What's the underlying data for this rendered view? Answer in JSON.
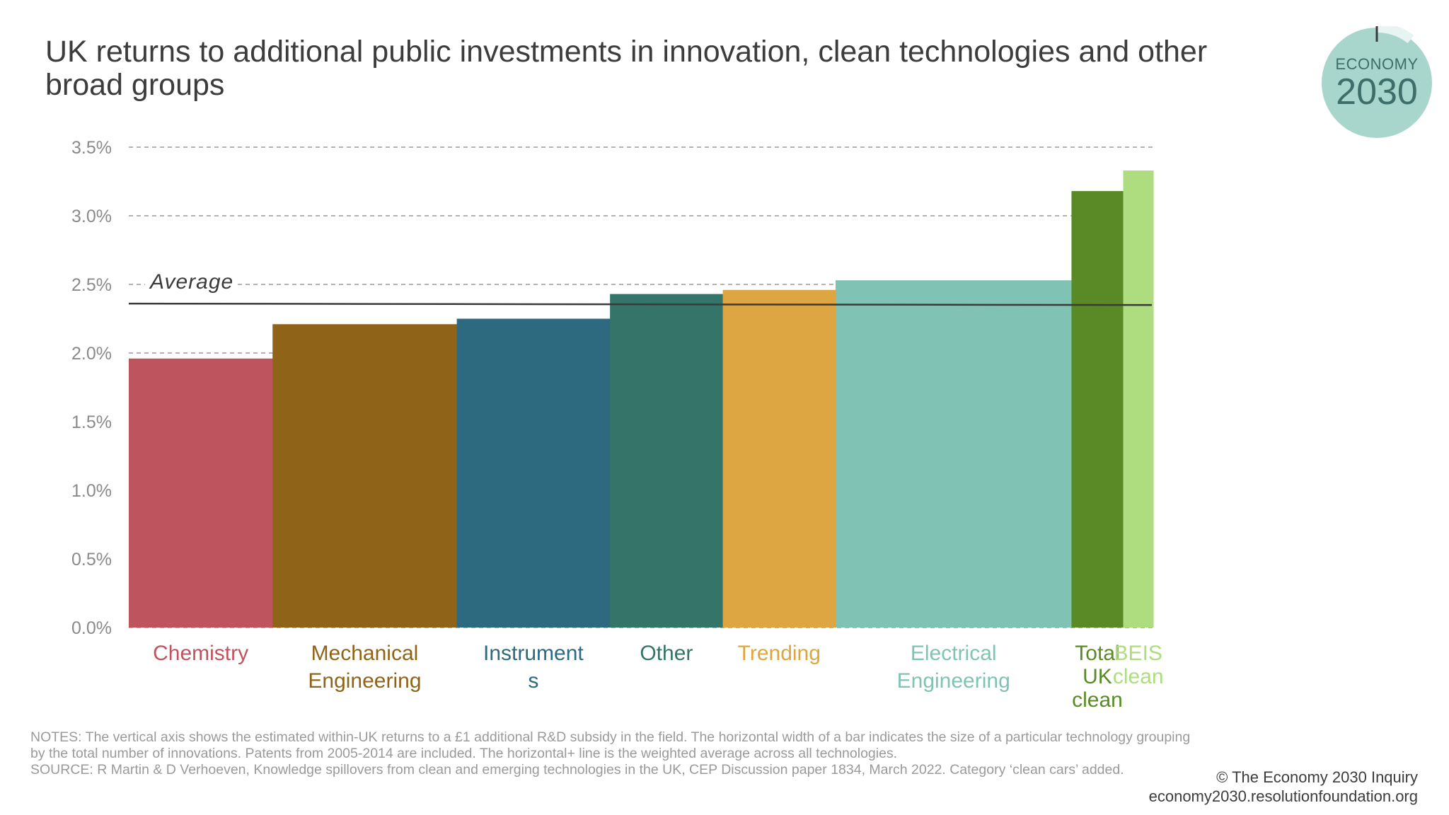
{
  "title": "UK returns to additional public investments in innovation, clean technologies and other broad groups",
  "logo": {
    "line1": "ECONOMY",
    "line2": "2030",
    "color": "#a8d5cc"
  },
  "chart_data": {
    "type": "bar",
    "variable_width": true,
    "categories": [
      "Chemistry",
      "Mechanical Engineering",
      "Instruments",
      "Other",
      "Trending",
      "Electrical Engineering",
      "Total UK clean",
      "BEIS clean"
    ],
    "category_label_lines": [
      [
        "Chemistry"
      ],
      [
        "Mechanical",
        "Engineering"
      ],
      [
        "Instrument",
        "s"
      ],
      [
        "Other"
      ],
      [
        "Trending"
      ],
      [
        "Electrical",
        "Engineering"
      ],
      [
        "Total",
        "UK",
        "clean"
      ],
      [
        "BEIS",
        "clean"
      ]
    ],
    "values": [
      1.96,
      2.21,
      2.25,
      2.43,
      2.46,
      2.53,
      3.18,
      3.33
    ],
    "relative_widths": [
      153,
      196,
      163,
      120,
      120,
      251,
      55,
      32
    ],
    "colors": [
      "#bd545e",
      "#8f6419",
      "#2d6a80",
      "#357569",
      "#dea642",
      "#80c3b5",
      "#5a8a25",
      "#addd7e"
    ],
    "y_ticks": [
      "0.0%",
      "0.5%",
      "1.0%",
      "1.5%",
      "2.0%",
      "2.5%",
      "3.0%",
      "3.5%"
    ],
    "y_tick_values": [
      0,
      0.5,
      1.0,
      1.5,
      2.0,
      2.5,
      3.0,
      3.5
    ],
    "ylim": [
      0,
      3.5
    ],
    "average": {
      "label": "Average",
      "value": 2.36
    },
    "grid": "dashed horizontal"
  },
  "notes": [
    "NOTES: The vertical axis shows the estimated within-UK returns to a £1 additional R&D subsidy in the field. The horizontal width of a bar indicates the size of a particular technology grouping by the total number of innovations. Patents from 2005-2014 are included. The horizontal+ line is the weighted average across all technologies.",
    "SOURCE: R Martin & D Verhoeven, Knowledge spillovers from clean and emerging technologies in the UK, CEP Discussion paper 1834, March 2022. Category ‘clean cars’ added."
  ],
  "credit": {
    "line1": "© The Economy 2030 Inquiry",
    "line2": "economy2030.resolutionfoundation.org"
  }
}
